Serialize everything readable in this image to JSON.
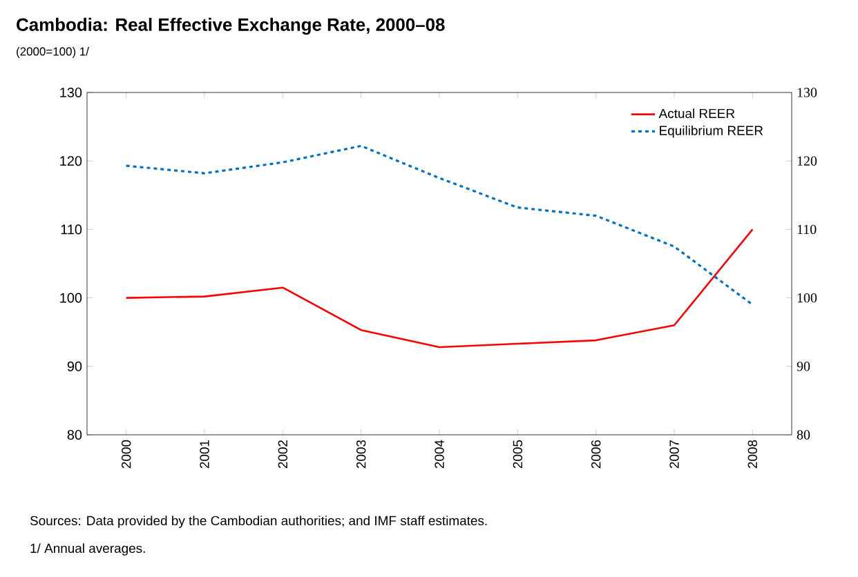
{
  "chart_data": {
    "type": "line",
    "title": "Cambodia: Real Effective Exchange Rate, 2000–08",
    "subtitle": "(2000=100) 1/",
    "categories": [
      "2000",
      "2001",
      "2002",
      "2003",
      "2004",
      "2005",
      "2006",
      "2007",
      "2008"
    ],
    "series": [
      {
        "name": "Actual REER",
        "color": "#ff0000",
        "line_style": "solid",
        "values": [
          100.0,
          100.2,
          101.5,
          95.3,
          92.8,
          93.3,
          93.8,
          96.0,
          110.0
        ]
      },
      {
        "name": "Equilibrium REER",
        "color": "#0070c0",
        "line_style": "dotted",
        "values": [
          119.3,
          118.2,
          119.8,
          122.2,
          117.5,
          113.2,
          112.0,
          107.5,
          99.0
        ]
      }
    ],
    "ylim": [
      80,
      130
    ],
    "yticks": [
      80,
      90,
      100,
      110,
      120,
      130
    ],
    "y2lim": [
      80,
      130
    ],
    "y2ticks": [
      80,
      90,
      100,
      110,
      120,
      130
    ],
    "legend": "top right",
    "grid": false,
    "marker": "none",
    "annotations": [
      "Sources: Data provided by the Cambodian authorities; and IMF staff estimates.",
      "1/ Annual averages."
    ]
  }
}
